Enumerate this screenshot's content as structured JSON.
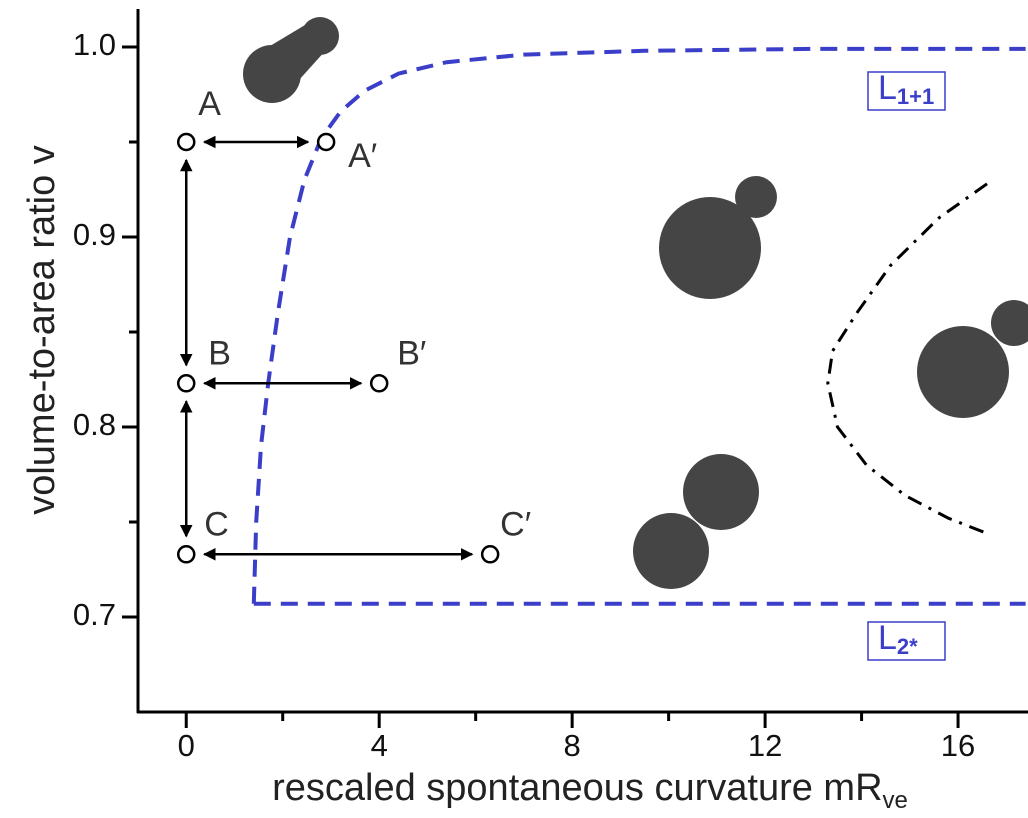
{
  "chart_data": {
    "type": "scatter",
    "xlabel": {
      "text": "rescaled spontaneous curvature mR",
      "sub": "ve"
    },
    "ylabel": "volume-to-area ratio v",
    "xlim": [
      -1,
      17.45
    ],
    "ylim": [
      0.65,
      1.02
    ],
    "xticks": [
      0,
      4,
      8,
      12,
      16
    ],
    "yticks": [
      0.7,
      0.8,
      0.9,
      {
        "value": 1,
        "label": "1.0"
      }
    ],
    "xminorticks": [
      2,
      6,
      10,
      14
    ],
    "yminorticks": [
      0.75,
      0.85,
      0.95
    ],
    "points": [
      {
        "label": "A",
        "x": 0,
        "y": 0.95
      },
      {
        "label": "A′",
        "x": 2.9,
        "y": 0.95
      },
      {
        "label": "B",
        "x": 0,
        "y": 0.823
      },
      {
        "label": "B′",
        "x": 4.0,
        "y": 0.823
      },
      {
        "label": "C",
        "x": 0,
        "y": 0.733
      },
      {
        "label": "C′",
        "x": 6.3,
        "y": 0.733
      }
    ],
    "curves": [
      {
        "label": {
          "main": "L",
          "sub": "1+1"
        },
        "color": "#3a3ec8",
        "style": "dashed",
        "x": [
          1.4,
          1.45,
          1.55,
          1.7,
          1.9,
          2.15,
          2.45,
          2.8,
          3.2,
          3.7,
          4.4,
          5.4,
          7,
          9.5,
          13,
          17.4
        ],
        "y": [
          0.707,
          0.75,
          0.79,
          0.823,
          0.86,
          0.9,
          0.93,
          0.952,
          0.966,
          0.977,
          0.986,
          0.992,
          0.996,
          0.998,
          0.999,
          0.999
        ]
      },
      {
        "label": {
          "main": "L",
          "sub": "2*"
        },
        "color": "#3a3ec8",
        "style": "dashed",
        "x": [
          1.4,
          17.4
        ],
        "y": [
          0.707,
          0.707
        ]
      },
      {
        "color": "#000000",
        "style": "dash-dot",
        "x": [
          16.6,
          15.6,
          14.6,
          13.9,
          13.4,
          13.3,
          13.5,
          14.1,
          14.9,
          15.8,
          16.6
        ],
        "y": [
          0.928,
          0.91,
          0.885,
          0.86,
          0.84,
          0.823,
          0.8,
          0.78,
          0.764,
          0.752,
          0.744
        ]
      }
    ]
  }
}
